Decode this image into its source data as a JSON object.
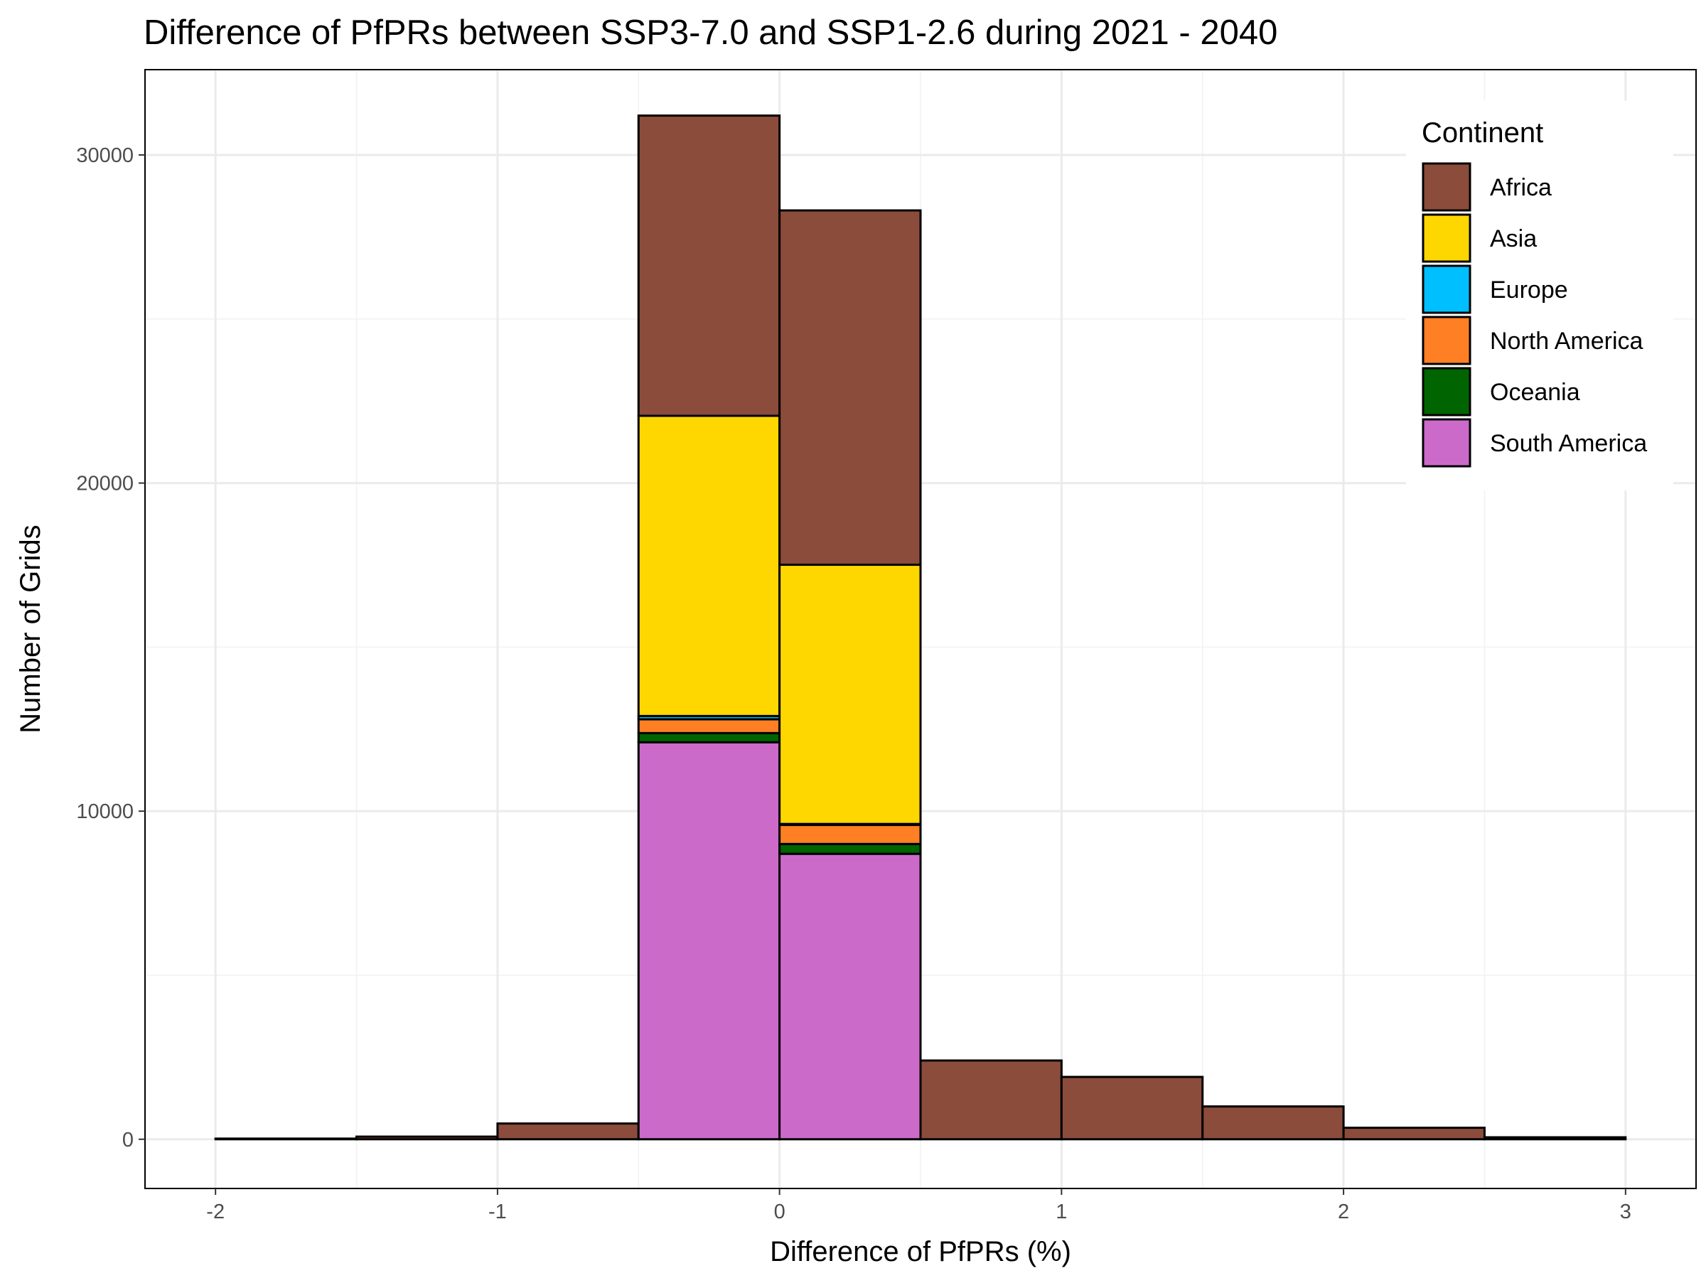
{
  "chart_data": {
    "type": "bar",
    "subtype": "stacked-histogram",
    "title": "Difference of PfPRs between SSP3-7.0 and SSP1-2.6 during 2021 - 2040",
    "xlabel": "Difference of PfPRs (%)",
    "ylabel": "Number of Grids",
    "xlim": [
      -2.25,
      3.25
    ],
    "ylim": [
      -1500,
      32600
    ],
    "x_ticks": [
      -2,
      -1,
      0,
      1,
      2,
      3
    ],
    "x_tick_labels": [
      "-2",
      "-1",
      "0",
      "1",
      "2",
      "3"
    ],
    "y_ticks": [
      0,
      10000,
      20000,
      30000
    ],
    "y_tick_labels": [
      "0",
      "10000",
      "20000",
      "30000"
    ],
    "grid": true,
    "legend_position": "top-right",
    "legend_title": "Continent",
    "bins": [
      {
        "x_start": -2.0,
        "x_end": -1.5
      },
      {
        "x_start": -1.5,
        "x_end": -1.0
      },
      {
        "x_start": -1.0,
        "x_end": -0.5
      },
      {
        "x_start": -0.5,
        "x_end": 0.0
      },
      {
        "x_start": 0.0,
        "x_end": 0.5
      },
      {
        "x_start": 0.5,
        "x_end": 1.0
      },
      {
        "x_start": 1.0,
        "x_end": 1.5
      },
      {
        "x_start": 1.5,
        "x_end": 2.0
      },
      {
        "x_start": 2.0,
        "x_end": 2.5
      },
      {
        "x_start": 2.5,
        "x_end": 3.0
      }
    ],
    "series": [
      {
        "name": "South America",
        "color": "#CC6ACA",
        "values": [
          0,
          0,
          0,
          12100,
          8700,
          0,
          0,
          0,
          0,
          0
        ]
      },
      {
        "name": "Oceania",
        "color": "#006400",
        "values": [
          0,
          0,
          0,
          280,
          300,
          0,
          0,
          0,
          0,
          0
        ]
      },
      {
        "name": "North America",
        "color": "#FF7F24",
        "values": [
          0,
          0,
          0,
          420,
          580,
          0,
          0,
          0,
          0,
          0
        ]
      },
      {
        "name": "Europe",
        "color": "#00BFFF",
        "values": [
          0,
          0,
          0,
          100,
          30,
          0,
          0,
          0,
          0,
          0
        ]
      },
      {
        "name": "Asia",
        "color": "#FFD700",
        "values": [
          0,
          0,
          0,
          9150,
          7900,
          0,
          0,
          0,
          0,
          0
        ]
      },
      {
        "name": "Africa",
        "color": "#8B4C3B",
        "values": [
          20,
          80,
          480,
          9150,
          10800,
          2400,
          1900,
          1000,
          350,
          60
        ]
      }
    ],
    "legend_order": [
      "Africa",
      "Asia",
      "Europe",
      "North America",
      "Oceania",
      "South America"
    ]
  }
}
